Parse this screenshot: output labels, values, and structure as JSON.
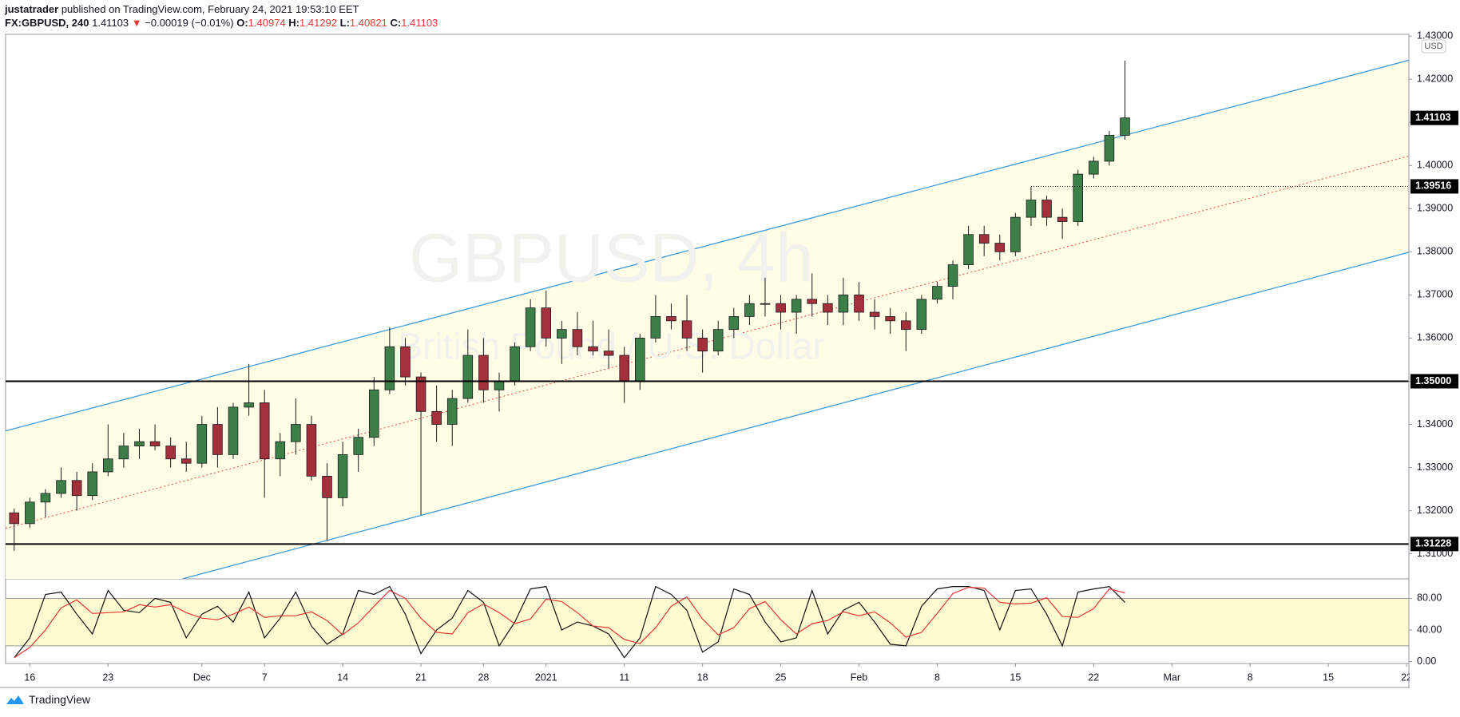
{
  "header": {
    "author": "justatrader",
    "published": "published on TradingView.com, February 24, 2021 19:53:10 EET"
  },
  "legend": {
    "symbol": "FX:GBPUSD, 240",
    "last": "1.41103",
    "arrow": "▼",
    "change": "−0.00019 (−0.01%)",
    "ohlc": [
      {
        "key": "O:",
        "value": "1.40974"
      },
      {
        "key": "H:",
        "value": "1.41292"
      },
      {
        "key": "L:",
        "value": "1.40821"
      },
      {
        "key": "C:",
        "value": "1.41103"
      }
    ]
  },
  "footer": {
    "brand": "TradingView"
  },
  "chart_data": [
    {
      "type": "candlestick",
      "currency": "USD",
      "watermark": {
        "title": "GBPUSD, 4h",
        "subtitle": "British Pound / U.S. Dollar"
      },
      "up_color": "#3d7f48",
      "down_color": "#a3303a",
      "x": [
        -1,
        0,
        1,
        2,
        3,
        4,
        5,
        6,
        7,
        8,
        9,
        10,
        11,
        12,
        13,
        14,
        15,
        16,
        17,
        18,
        19,
        20,
        21,
        22,
        23,
        24,
        25,
        26,
        27,
        28,
        29,
        30,
        31,
        32,
        33,
        34,
        35,
        36,
        37,
        38,
        39,
        40,
        41,
        42,
        43,
        44,
        45,
        46,
        47,
        48,
        49,
        50,
        51,
        52,
        53,
        54,
        55,
        56,
        57,
        58,
        59,
        60,
        61,
        62,
        63,
        64,
        65,
        66,
        67,
        68,
        69,
        70
      ],
      "open": [
        1.3195,
        1.317,
        1.322,
        1.324,
        1.327,
        1.3235,
        1.329,
        1.332,
        1.335,
        1.336,
        1.335,
        1.332,
        1.331,
        1.34,
        1.333,
        1.344,
        1.345,
        1.332,
        1.336,
        1.34,
        1.328,
        1.323,
        1.333,
        1.337,
        1.348,
        1.358,
        1.351,
        1.343,
        1.34,
        1.346,
        1.356,
        1.348,
        1.35,
        1.358,
        1.367,
        1.36,
        1.362,
        1.358,
        1.357,
        1.356,
        1.35,
        1.36,
        1.365,
        1.364,
        1.36,
        1.357,
        1.362,
        1.365,
        1.368,
        1.368,
        1.366,
        1.369,
        1.368,
        1.366,
        1.37,
        1.366,
        1.365,
        1.364,
        1.362,
        1.369,
        1.372,
        1.377,
        1.384,
        1.382,
        1.38,
        1.388,
        1.392,
        1.388,
        1.387,
        1.398,
        1.401,
        1.407
      ],
      "high": [
        1.3205,
        1.323,
        1.325,
        1.33,
        1.329,
        1.331,
        1.34,
        1.338,
        1.339,
        1.34,
        1.337,
        1.336,
        1.342,
        1.344,
        1.345,
        1.354,
        1.348,
        1.338,
        1.346,
        1.342,
        1.331,
        1.336,
        1.339,
        1.351,
        1.3625,
        1.36,
        1.352,
        1.349,
        1.348,
        1.362,
        1.36,
        1.352,
        1.359,
        1.369,
        1.371,
        1.364,
        1.366,
        1.364,
        1.362,
        1.358,
        1.361,
        1.37,
        1.368,
        1.37,
        1.362,
        1.364,
        1.367,
        1.37,
        1.374,
        1.37,
        1.37,
        1.375,
        1.37,
        1.374,
        1.373,
        1.369,
        1.367,
        1.366,
        1.37,
        1.373,
        1.378,
        1.386,
        1.386,
        1.384,
        1.389,
        1.395,
        1.393,
        1.39,
        1.399,
        1.402,
        1.408,
        1.4243
      ],
      "low": [
        1.3107,
        1.316,
        1.3185,
        1.323,
        1.32,
        1.3225,
        1.328,
        1.33,
        1.332,
        1.334,
        1.33,
        1.329,
        1.33,
        1.33,
        1.332,
        1.342,
        1.323,
        1.328,
        1.333,
        1.327,
        1.313,
        1.321,
        1.329,
        1.335,
        1.347,
        1.349,
        1.319,
        1.336,
        1.335,
        1.345,
        1.345,
        1.343,
        1.349,
        1.357,
        1.358,
        1.354,
        1.356,
        1.356,
        1.353,
        1.345,
        1.348,
        1.359,
        1.362,
        1.357,
        1.352,
        1.356,
        1.36,
        1.363,
        1.365,
        1.362,
        1.361,
        1.365,
        1.363,
        1.363,
        1.364,
        1.362,
        1.361,
        1.357,
        1.361,
        1.368,
        1.369,
        1.376,
        1.379,
        1.378,
        1.379,
        1.386,
        1.386,
        1.383,
        1.386,
        1.397,
        1.4,
        1.406
      ],
      "close": [
        1.317,
        1.322,
        1.324,
        1.327,
        1.3235,
        1.329,
        1.332,
        1.335,
        1.336,
        1.335,
        1.332,
        1.331,
        1.34,
        1.333,
        1.344,
        1.345,
        1.332,
        1.336,
        1.34,
        1.328,
        1.323,
        1.333,
        1.337,
        1.348,
        1.358,
        1.351,
        1.343,
        1.34,
        1.346,
        1.356,
        1.348,
        1.35,
        1.358,
        1.367,
        1.36,
        1.362,
        1.358,
        1.357,
        1.356,
        1.35,
        1.36,
        1.365,
        1.364,
        1.36,
        1.357,
        1.362,
        1.365,
        1.368,
        1.368,
        1.366,
        1.369,
        1.368,
        1.366,
        1.37,
        1.366,
        1.365,
        1.364,
        1.362,
        1.369,
        1.372,
        1.377,
        1.384,
        1.382,
        1.38,
        1.388,
        1.392,
        1.388,
        1.387,
        1.398,
        1.401,
        1.407,
        1.41103
      ],
      "xlim": [
        -1.55,
        88.15
      ],
      "ylim": [
        1.3042,
        1.4304
      ],
      "yticks": [
        {
          "value": 1.43,
          "label": "1.43000"
        },
        {
          "value": 1.42,
          "label": "1.42000"
        },
        {
          "value": 1.41,
          "label": "1.41000"
        },
        {
          "value": 1.4,
          "label": "1.40000"
        },
        {
          "value": 1.39,
          "label": "1.39000"
        },
        {
          "value": 1.38,
          "label": "1.38000"
        },
        {
          "value": 1.37,
          "label": "1.37000"
        },
        {
          "value": 1.36,
          "label": "1.36000"
        },
        {
          "value": 1.35,
          "label": "1.35000"
        },
        {
          "value": 1.34,
          "label": "1.34000"
        },
        {
          "value": 1.33,
          "label": "1.33000"
        },
        {
          "value": 1.32,
          "label": "1.32000"
        },
        {
          "value": 1.31,
          "label": "1.31000"
        }
      ],
      "channel": {
        "color": "#3d9be0",
        "fill": "#fffde6",
        "middle_color": "#e8473f",
        "upper": {
          "x": [
            -1.55,
            88.15
          ],
          "y": [
            1.3385,
            1.4244
          ]
        },
        "lower": {
          "x": [
            9.76,
            88.15
          ],
          "y": [
            1.3042,
            1.3799
          ]
        },
        "middle": {
          "x": [
            -1.55,
            88.15
          ],
          "y": [
            1.3159,
            1.4022
          ]
        }
      },
      "hlines": [
        {
          "value": 1.35,
          "label": "1.35000",
          "from": -1.55
        },
        {
          "value": 1.31228,
          "label": "1.31228",
          "from": -1.55
        },
        {
          "value": 1.39516,
          "label": "1.39516",
          "from": 64,
          "dotted": true
        }
      ],
      "last_price": {
        "value": 1.41103,
        "label": "1.41103"
      }
    },
    {
      "type": "line",
      "band": [
        20,
        80
      ],
      "band_color": "#fffbd0",
      "x": [
        -1,
        0,
        1,
        2,
        3,
        4,
        5,
        6,
        7,
        8,
        9,
        10,
        11,
        12,
        13,
        14,
        15,
        16,
        17,
        18,
        19,
        20,
        21,
        22,
        23,
        24,
        25,
        26,
        27,
        28,
        29,
        30,
        31,
        32,
        33,
        34,
        35,
        36,
        37,
        38,
        39,
        40,
        41,
        42,
        43,
        44,
        45,
        46,
        47,
        48,
        49,
        50,
        51,
        52,
        53,
        54,
        55,
        56,
        57,
        58,
        59,
        60,
        61,
        62,
        63,
        64,
        65,
        66,
        67,
        68,
        69,
        70
      ],
      "series": [
        {
          "color": "#111111",
          "values": [
            5,
            30,
            85,
            88,
            60,
            35,
            90,
            65,
            62,
            80,
            75,
            30,
            60,
            70,
            50,
            88,
            30,
            55,
            88,
            45,
            22,
            35,
            90,
            85,
            95,
            60,
            10,
            40,
            55,
            90,
            75,
            20,
            50,
            92,
            95,
            40,
            50,
            45,
            35,
            5,
            30,
            95,
            85,
            65,
            12,
            25,
            92,
            85,
            50,
            25,
            30,
            90,
            35,
            65,
            75,
            50,
            22,
            20,
            70,
            92,
            95,
            95,
            90,
            40,
            90,
            92,
            60,
            20,
            88,
            92,
            95,
            75
          ]
        },
        {
          "color": "#e53935",
          "values": [
            5,
            18,
            40,
            68,
            78,
            61,
            62,
            63,
            72,
            69,
            72,
            62,
            55,
            53,
            60,
            69,
            56,
            58,
            58,
            63,
            52,
            34,
            49,
            70,
            90,
            80,
            55,
            37,
            35,
            62,
            73,
            62,
            48,
            54,
            79,
            76,
            62,
            45,
            43,
            28,
            23,
            43,
            70,
            82,
            54,
            34,
            43,
            67,
            76,
            53,
            35,
            48,
            52,
            63,
            58,
            63,
            49,
            31,
            37,
            61,
            86,
            94,
            93,
            75,
            73,
            74,
            81,
            57,
            56,
            67,
            92,
            87
          ]
        }
      ],
      "xlim": [
        -1.55,
        88.15
      ],
      "ylim": [
        -2.4,
        104.7
      ],
      "yticks": [
        {
          "value": 80,
          "label": "80.00"
        },
        {
          "value": 40,
          "label": "40.00"
        },
        {
          "value": 0,
          "label": "0.00"
        }
      ],
      "xticks": [
        {
          "value": 0,
          "label": "16"
        },
        {
          "value": 5,
          "label": "23"
        },
        {
          "value": 11,
          "label": "Dec"
        },
        {
          "value": 15,
          "label": "7"
        },
        {
          "value": 20,
          "label": "14"
        },
        {
          "value": 25,
          "label": "21"
        },
        {
          "value": 29,
          "label": "28"
        },
        {
          "value": 33,
          "label": "2021"
        },
        {
          "value": 38,
          "label": "11"
        },
        {
          "value": 43,
          "label": "18"
        },
        {
          "value": 48,
          "label": "25"
        },
        {
          "value": 53,
          "label": "Feb"
        },
        {
          "value": 58,
          "label": "8"
        },
        {
          "value": 63,
          "label": "15"
        },
        {
          "value": 68,
          "label": "22"
        },
        {
          "value": 73,
          "label": "Mar"
        },
        {
          "value": 78,
          "label": "8"
        },
        {
          "value": 83,
          "label": "15"
        },
        {
          "value": 88,
          "label": "22"
        }
      ]
    }
  ]
}
